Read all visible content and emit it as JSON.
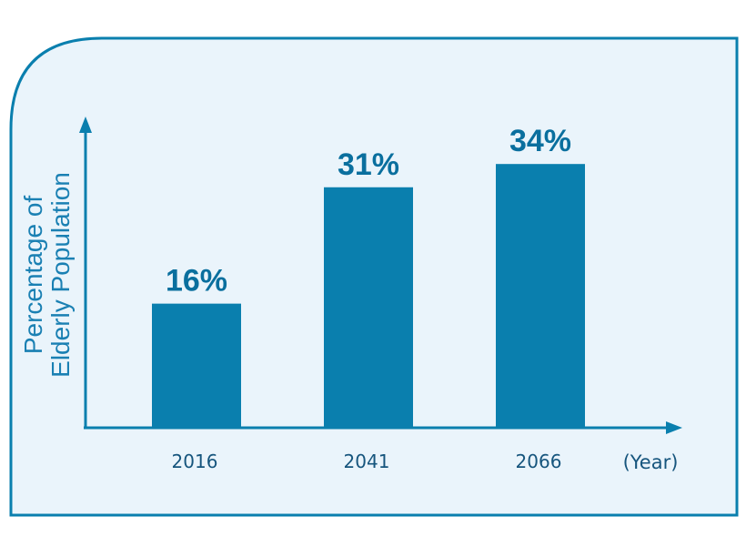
{
  "colors": {
    "panel_bg": "#eaf4fb",
    "panel_border": "#0a7fae",
    "bar": "#0a7fae",
    "axis": "#0a7fae",
    "value_text": "#0a6f9e",
    "tick_text": "#16557d",
    "axis_title_text": "#1a80b3"
  },
  "chart_data": {
    "type": "bar",
    "categories": [
      "2016",
      "2041",
      "2066"
    ],
    "values": [
      16,
      31,
      34
    ],
    "value_labels": [
      "16%",
      "31%",
      "34%"
    ],
    "ylabel_lines": [
      "Percentage of",
      "Elderly Population"
    ],
    "x_unit": "(Year)",
    "ylim": [
      0,
      42
    ],
    "grid": false,
    "legend": "none"
  }
}
